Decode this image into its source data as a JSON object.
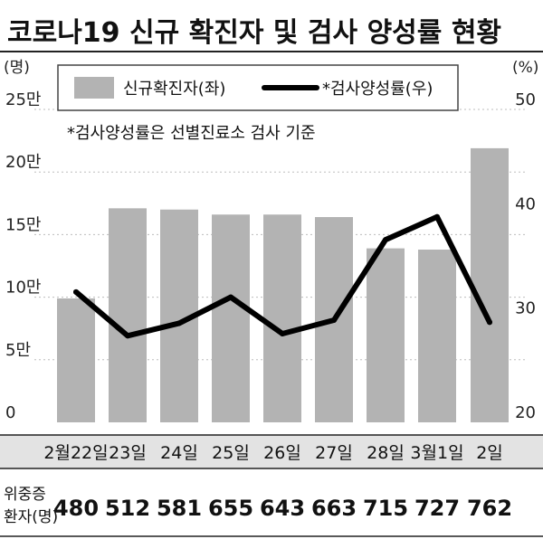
{
  "chart_data": {
    "type": "bar+line",
    "title": "코로나19 신규 확진자 및 검사 양성률 현황",
    "left_unit": "(명)",
    "right_unit": "(%)",
    "categories": [
      "2월22일",
      "23일",
      "24일",
      "25일",
      "26일",
      "27일",
      "28일",
      "3월1일",
      "2일"
    ],
    "left_axis": {
      "ylim": [
        0,
        250000
      ],
      "ticks": [
        0,
        50000,
        100000,
        150000,
        200000,
        250000
      ],
      "tick_labels": [
        "0",
        "5만",
        "10만",
        "15만",
        "20만",
        "25만"
      ]
    },
    "right_axis": {
      "ylim": [
        20,
        50
      ],
      "ticks": [
        20,
        30,
        40,
        50
      ],
      "tick_labels": [
        "20",
        "30",
        "40",
        "50"
      ]
    },
    "series": [
      {
        "name": "신규확진자(좌)",
        "type": "bar",
        "axis": "left",
        "color": "#b3b3b3",
        "values": [
          99000,
          171000,
          170000,
          166000,
          166000,
          164000,
          139000,
          138000,
          219000
        ]
      },
      {
        "name": "*검사양성률(우)",
        "type": "line",
        "axis": "right",
        "color": "#000000",
        "values": [
          32.5,
          28.3,
          29.5,
          32.0,
          28.5,
          29.8,
          37.5,
          39.7,
          29.6
        ]
      }
    ],
    "note": "*검사양성률은 선별진료소 검사 기준",
    "table": {
      "row_label_line1": "위중증",
      "row_label_line2": "환자(명)",
      "values": [
        "480",
        "512",
        "581",
        "655",
        "643",
        "663",
        "715",
        "727",
        "762"
      ]
    }
  }
}
